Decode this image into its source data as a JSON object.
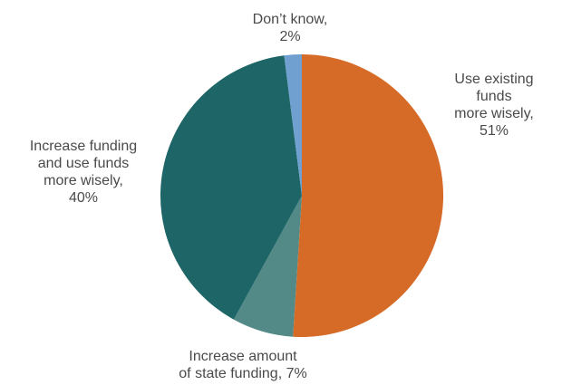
{
  "chart_data": {
    "type": "pie",
    "start_angle_deg": 0,
    "direction": "clockwise",
    "slices": [
      {
        "label": [
          "Use existing",
          "funds",
          "more wisely,",
          "51%"
        ],
        "value": 51,
        "color": "#D66B28"
      },
      {
        "label": [
          "Increase amount",
          "of state funding, 7%"
        ],
        "value": 7,
        "color": "#538987"
      },
      {
        "label": [
          "Increase funding",
          "and use funds",
          "more wisely,",
          "40%"
        ],
        "value": 40,
        "color": "#1D6566"
      },
      {
        "label": [
          "Don’t know,",
          "2%"
        ],
        "value": 2,
        "color": "#6FA0D0"
      }
    ]
  }
}
